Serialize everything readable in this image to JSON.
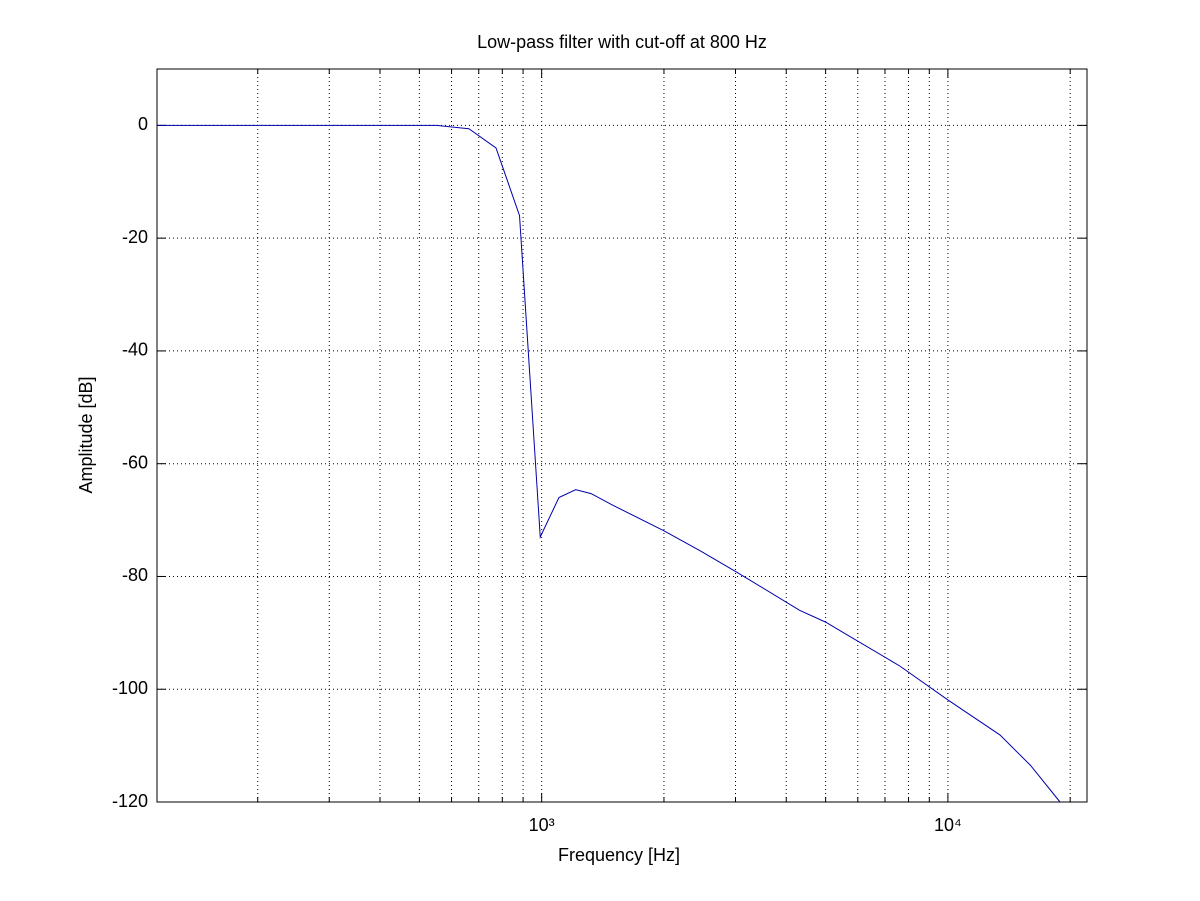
{
  "chart_data": {
    "type": "line",
    "title": "Low-pass filter with cut-off at 800 Hz",
    "x_label": "Frequency [Hz]",
    "y_label": "Amplitude [dB]",
    "x_scale": "log",
    "grid": true,
    "xlim": [
      113,
      22000
    ],
    "ylim": [
      -120,
      10
    ],
    "xticks": [
      {
        "value": 1000,
        "label": "10³"
      },
      {
        "value": 10000,
        "label": "10⁴"
      }
    ],
    "xminor_ticks": [
      200,
      300,
      400,
      500,
      600,
      700,
      800,
      900,
      2000,
      3000,
      4000,
      5000,
      6000,
      7000,
      8000,
      9000,
      20000
    ],
    "yticks": [
      -120,
      -100,
      -80,
      -60,
      -40,
      -20,
      0
    ],
    "series": [
      {
        "color": "#0000aa",
        "x": [
          113,
          330,
          551,
          662,
          772,
          882,
          992,
          1103,
          1213,
          1323,
          1500,
          2000,
          2450,
          3000,
          4315,
          5000,
          7620,
          10000,
          13430,
          15970,
          18880
        ],
        "values": [
          0,
          0,
          0,
          -0.6,
          -4,
          -16,
          -73,
          -66,
          -64.6,
          -65.3,
          -67.4,
          -71.9,
          -75.4,
          -79.1,
          -86,
          -88.1,
          -95.9,
          -101.9,
          -108.1,
          -113.5,
          -120
        ]
      }
    ]
  }
}
